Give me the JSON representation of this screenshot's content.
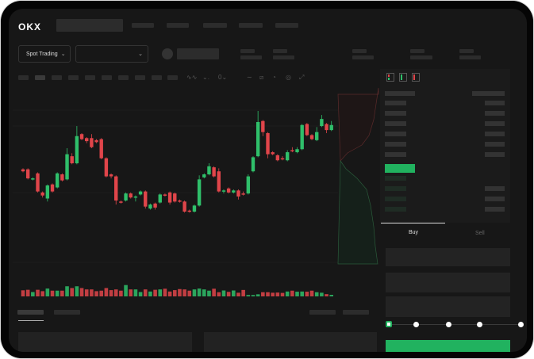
{
  "header": {
    "logo": "OKX"
  },
  "market": {
    "type_label": "Spot Trading",
    "pair_label": ""
  },
  "toolbar": {
    "icons": [
      "indicator-icon",
      "chart-type-icon",
      "compare-icon",
      "line-tool-icon",
      "ruler-icon",
      "camera-icon",
      "settings-icon",
      "fullscreen-icon"
    ]
  },
  "orderbook": {
    "view_icons": [
      "both-sides-icon",
      "bids-only-icon",
      "asks-only-icon"
    ]
  },
  "trade": {
    "tabs": [
      {
        "label": "Buy",
        "active": true
      },
      {
        "label": "Sell",
        "active": false
      }
    ],
    "slider_percent": 0,
    "slider_steps": [
      0,
      25,
      50,
      75,
      100
    ]
  },
  "colors": {
    "up": "#2fbf6a",
    "down": "#e0454a",
    "background": "#171717",
    "accent": "#21b25f"
  },
  "chart_data": {
    "type": "candlestick",
    "candles": [
      [
        42,
        40,
        43,
        39
      ],
      [
        42,
        33,
        43,
        32
      ],
      [
        32,
        33,
        34,
        31
      ],
      [
        38,
        20,
        39,
        19
      ],
      [
        19,
        16,
        20,
        14
      ],
      [
        13,
        26,
        27,
        10
      ],
      [
        27,
        20,
        28,
        19
      ],
      [
        24,
        38,
        39,
        23
      ],
      [
        37,
        31,
        38,
        30
      ],
      [
        32,
        57,
        63,
        31
      ],
      [
        55,
        48,
        58,
        47
      ],
      [
        48,
        75,
        85,
        47
      ],
      [
        77,
        72,
        78,
        71
      ],
      [
        73,
        70,
        74,
        68
      ],
      [
        73,
        64,
        77,
        63
      ],
      [
        71,
        69,
        72,
        68
      ],
      [
        72,
        53,
        73,
        52
      ],
      [
        53,
        35,
        54,
        34
      ],
      [
        37,
        35,
        38,
        33
      ],
      [
        35,
        11,
        36,
        7
      ],
      [
        10,
        9,
        11,
        8
      ],
      [
        11,
        18,
        19,
        10
      ],
      [
        18,
        14,
        19,
        13
      ],
      [
        14,
        15,
        16,
        10
      ],
      [
        17,
        20,
        21,
        16
      ],
      [
        20,
        5,
        21,
        3
      ],
      [
        3,
        7,
        8,
        2
      ],
      [
        8,
        4,
        9,
        2
      ],
      [
        9,
        17,
        18,
        8
      ],
      [
        17,
        16,
        18,
        15
      ],
      [
        19,
        9,
        20,
        7
      ],
      [
        18,
        10,
        19,
        9
      ],
      [
        11,
        10,
        12,
        9
      ],
      [
        10,
        0,
        11,
        -1
      ],
      [
        1,
        0,
        2,
        -1
      ],
      [
        0,
        6,
        7,
        -1
      ],
      [
        6,
        32,
        36,
        5
      ],
      [
        34,
        37,
        38,
        33
      ],
      [
        37,
        45,
        48,
        36
      ],
      [
        44,
        35,
        45,
        34
      ],
      [
        40,
        20,
        43,
        19
      ],
      [
        20,
        21,
        22,
        18
      ],
      [
        23,
        19,
        24,
        18
      ],
      [
        19,
        21,
        22,
        18
      ],
      [
        21,
        15,
        22,
        12
      ],
      [
        18,
        17,
        20,
        16
      ],
      [
        18,
        35,
        37,
        17
      ],
      [
        40,
        54,
        55,
        39
      ],
      [
        55,
        89,
        100,
        54
      ],
      [
        90,
        79,
        91,
        75
      ],
      [
        78,
        57,
        79,
        53
      ],
      [
        59,
        57,
        60,
        56
      ],
      [
        56,
        51,
        57,
        50
      ],
      [
        53,
        52,
        55,
        51
      ],
      [
        51,
        59,
        61,
        50
      ],
      [
        61,
        60,
        64,
        59
      ],
      [
        59,
        62,
        64,
        58
      ],
      [
        62,
        86,
        87,
        61
      ],
      [
        87,
        76,
        88,
        75
      ],
      [
        76,
        72,
        77,
        71
      ],
      [
        71,
        79,
        84,
        70
      ],
      [
        85,
        92,
        96,
        84
      ],
      [
        87,
        81,
        88,
        78
      ],
      [
        81,
        86,
        90,
        80
      ]
    ],
    "volume": [
      35,
      38,
      25,
      38,
      30,
      45,
      33,
      33,
      33,
      58,
      48,
      58,
      48,
      40,
      40,
      30,
      33,
      48,
      36,
      40,
      33,
      65,
      40,
      40,
      25,
      40,
      28,
      38,
      40,
      44,
      28,
      36,
      42,
      40,
      33,
      40,
      45,
      40,
      33,
      44,
      24,
      34,
      26,
      34,
      21,
      37,
      8,
      8,
      12,
      24,
      24,
      21,
      22,
      20,
      28,
      33,
      27,
      28,
      27,
      33,
      24,
      21,
      13,
      9
    ]
  }
}
